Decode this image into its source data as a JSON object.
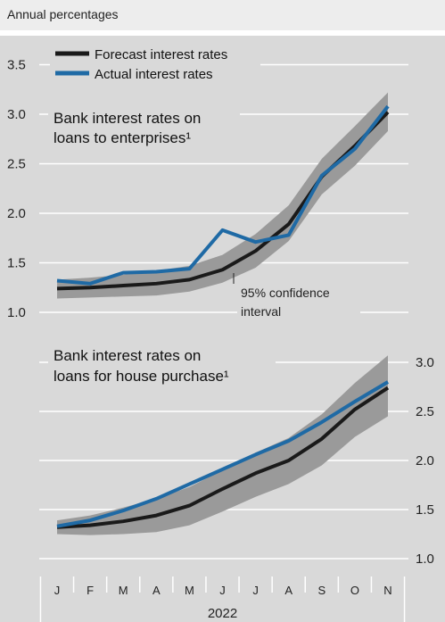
{
  "header": {
    "unit_label": "Annual percentages"
  },
  "legend": {
    "forecast": "Forecast interest rates",
    "actual": "Actual interest rates"
  },
  "colors": {
    "forecast": "#1a1a1a",
    "actual": "#1f6aa5",
    "band": "#9a9a9a",
    "background": "#d9d9d9",
    "gridline": "#ffffff"
  },
  "annotation": {
    "line1": "95% confidence",
    "line2": "interval"
  },
  "chart_data": [
    {
      "type": "line",
      "title": "Bank interest rates on loans to enterprises¹",
      "title_line1": "Bank interest rates on",
      "title_line2": "loans to enterprises¹",
      "x": [
        "J",
        "F",
        "M",
        "A",
        "M",
        "J",
        "J",
        "A",
        "S",
        "O",
        "N"
      ],
      "ylim": [
        1.0,
        3.5
      ],
      "yticks": [
        1.0,
        1.5,
        2.0,
        2.5,
        3.0,
        3.5
      ],
      "yaxis_side": "left",
      "grid": true,
      "legend_position": "top-left",
      "series": [
        {
          "name": "Forecast interest rates",
          "values": [
            1.24,
            1.25,
            1.27,
            1.29,
            1.33,
            1.43,
            1.62,
            1.89,
            2.37,
            2.68,
            3.02
          ]
        },
        {
          "name": "Actual interest rates",
          "values": [
            1.32,
            1.29,
            1.4,
            1.41,
            1.44,
            1.83,
            1.71,
            1.78,
            2.38,
            2.65,
            3.08
          ]
        }
      ],
      "confidence_band": {
        "lower": [
          1.14,
          1.15,
          1.16,
          1.17,
          1.21,
          1.3,
          1.45,
          1.72,
          2.19,
          2.48,
          2.83
        ],
        "upper": [
          1.33,
          1.35,
          1.38,
          1.42,
          1.47,
          1.58,
          1.79,
          2.08,
          2.55,
          2.88,
          3.22
        ]
      }
    },
    {
      "type": "line",
      "title": "Bank interest rates on loans for house purchase¹",
      "title_line1": "Bank interest rates on",
      "title_line2": "loans for house purchase¹",
      "x": [
        "J",
        "F",
        "M",
        "A",
        "M",
        "J",
        "J",
        "A",
        "S",
        "O",
        "N"
      ],
      "xlabel": "2022",
      "ylim": [
        1.0,
        3.0
      ],
      "yticks": [
        1.0,
        1.5,
        2.0,
        2.5,
        3.0
      ],
      "yaxis_side": "right",
      "grid": true,
      "series": [
        {
          "name": "Forecast interest rates",
          "values": [
            1.32,
            1.34,
            1.38,
            1.44,
            1.54,
            1.71,
            1.87,
            2.0,
            2.22,
            2.52,
            2.74
          ]
        },
        {
          "name": "Actual interest rates",
          "values": [
            1.33,
            1.39,
            1.49,
            1.61,
            1.76,
            1.91,
            2.06,
            2.2,
            2.39,
            2.6,
            2.8
          ]
        }
      ],
      "confidence_band": {
        "lower": [
          1.25,
          1.24,
          1.25,
          1.27,
          1.34,
          1.48,
          1.63,
          1.76,
          1.95,
          2.24,
          2.45
        ],
        "upper": [
          1.39,
          1.44,
          1.52,
          1.61,
          1.73,
          1.9,
          2.08,
          2.23,
          2.47,
          2.79,
          3.07
        ]
      }
    }
  ]
}
